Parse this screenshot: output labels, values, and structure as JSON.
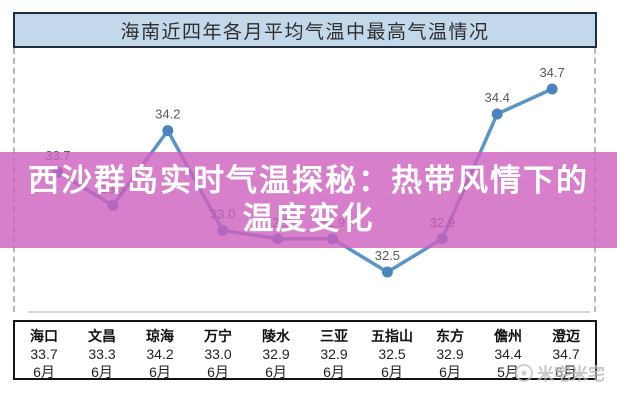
{
  "header": {
    "title": "海南近四年各月平均气温中最高气温情况",
    "bg_color": "#c4d8ec",
    "border_color": "#1f2d3d"
  },
  "overlay": {
    "line1": "西沙群岛实时气温探秘：热带风情下的",
    "line2": "温度变化",
    "band_color": "#ce5fbe",
    "band_opacity": 0.8,
    "text_color": "#ffffff"
  },
  "chart_data": {
    "type": "line",
    "title": "海南近四年各月平均气温中最高气温情况",
    "categories": [
      "海口",
      "文昌",
      "琼海",
      "万宁",
      "陵水",
      "三亚",
      "五指山",
      "东方",
      "儋州",
      "澄迈"
    ],
    "values": [
      33.7,
      33.3,
      34.2,
      33.0,
      32.9,
      32.9,
      32.5,
      32.9,
      34.4,
      34.7
    ],
    "labels": [
      "33.7",
      "33.3",
      "34.2",
      "33.0",
      "32.9",
      "32.9",
      "32.5",
      "32.9",
      "34.4",
      "34.7"
    ],
    "months": [
      "6月",
      "6月",
      "6月",
      "6月",
      "6月",
      "6月",
      "6月",
      "6月",
      "5月",
      "6月"
    ],
    "ylim": [
      32.0,
      35.2
    ],
    "xlabel": "",
    "ylabel": "",
    "grid": false,
    "legend": false,
    "line_color": "#5b94c8",
    "marker_color": "#4a86bd",
    "label_color": "#595959"
  },
  "watermark": {
    "text": "米宅米宅"
  }
}
